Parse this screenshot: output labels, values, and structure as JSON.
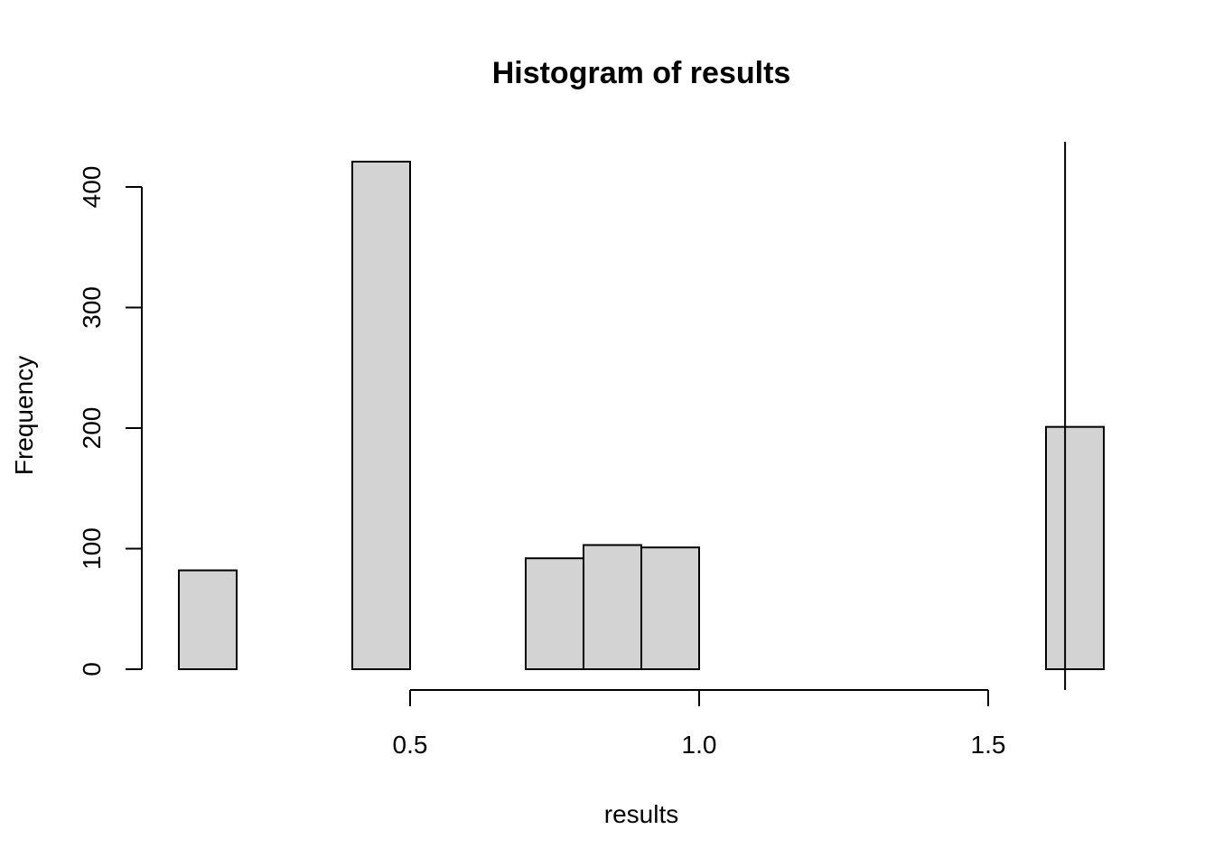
{
  "chart_data": {
    "type": "bar",
    "title": "Histogram of results",
    "xlabel": "results",
    "ylabel": "Frequency",
    "bins": [
      {
        "start": 0.1,
        "end": 0.2,
        "count": 82
      },
      {
        "start": 0.2,
        "end": 0.3,
        "count": 0
      },
      {
        "start": 0.3,
        "end": 0.4,
        "count": 0
      },
      {
        "start": 0.4,
        "end": 0.5,
        "count": 421
      },
      {
        "start": 0.5,
        "end": 0.6,
        "count": 0
      },
      {
        "start": 0.6,
        "end": 0.7,
        "count": 0
      },
      {
        "start": 0.7,
        "end": 0.8,
        "count": 92
      },
      {
        "start": 0.8,
        "end": 0.9,
        "count": 103
      },
      {
        "start": 0.9,
        "end": 1.0,
        "count": 101
      },
      {
        "start": 1.0,
        "end": 1.1,
        "count": 0
      },
      {
        "start": 1.1,
        "end": 1.2,
        "count": 0
      },
      {
        "start": 1.2,
        "end": 1.3,
        "count": 0
      },
      {
        "start": 1.3,
        "end": 1.4,
        "count": 0
      },
      {
        "start": 1.4,
        "end": 1.5,
        "count": 0
      },
      {
        "start": 1.5,
        "end": 1.6,
        "count": 0
      },
      {
        "start": 1.6,
        "end": 1.7,
        "count": 201
      }
    ],
    "xticks": [
      0.5,
      1.0,
      1.5
    ],
    "xtick_labels": [
      "0.5",
      "1.0",
      "1.5"
    ],
    "yticks": [
      0,
      100,
      200,
      300,
      400
    ],
    "ytick_labels": [
      "0",
      "100",
      "200",
      "300",
      "400"
    ],
    "vertical_line_x": 1.633,
    "bar_fill": "#d3d3d3",
    "bar_stroke": "#000000",
    "grid": false
  }
}
